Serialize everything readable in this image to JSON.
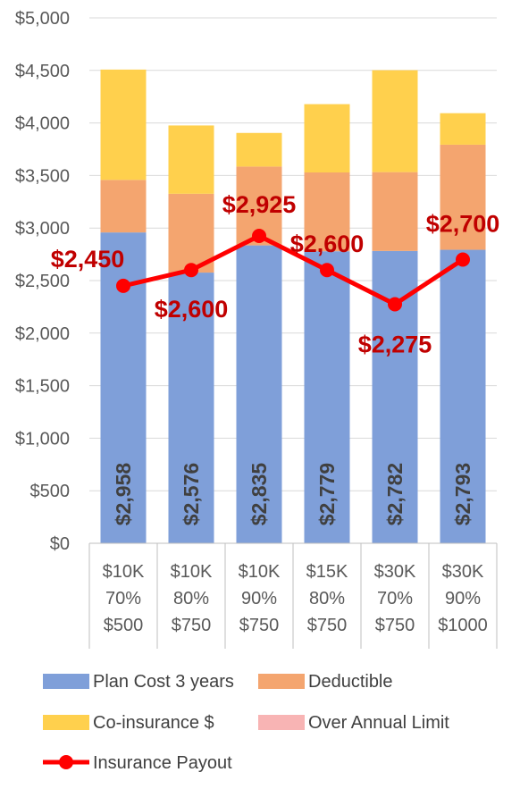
{
  "chart_data": {
    "type": "bar",
    "stacked": true,
    "categories": [
      [
        "$10K",
        "70%",
        "$500"
      ],
      [
        "$10K",
        "80%",
        "$750"
      ],
      [
        "$10K",
        "90%",
        "$750"
      ],
      [
        "$15K",
        "80%",
        "$750"
      ],
      [
        "$30K",
        "70%",
        "$750"
      ],
      [
        "$30K",
        "90%",
        "$1000"
      ]
    ],
    "series": [
      {
        "name": "Plan Cost 3 years",
        "type": "bar",
        "color": "#7f9fd9",
        "values": [
          2958,
          2576,
          2835,
          2779,
          2782,
          2793
        ],
        "labels": [
          "$2,958",
          "$2,576",
          "$2,835",
          "$2,779",
          "$2,782",
          "$2,793"
        ]
      },
      {
        "name": "Deductible",
        "type": "bar",
        "color": "#f4a56f",
        "values": [
          500,
          750,
          750,
          750,
          750,
          1000
        ]
      },
      {
        "name": "Co-insurance $",
        "type": "bar",
        "color": "#ffd04d",
        "values": [
          1050,
          650,
          320,
          650,
          970,
          300
        ]
      },
      {
        "name": "Over Annual Limit",
        "type": "bar",
        "color": "#f8b4b4",
        "values": [
          0,
          0,
          0,
          0,
          0,
          0
        ]
      },
      {
        "name": "Insurance Payout",
        "type": "line",
        "color": "#ff0000",
        "values": [
          2450,
          2600,
          2925,
          2600,
          2275,
          2700
        ],
        "labels": [
          "$2,450",
          "$2,600",
          "$2,925",
          "$2,600",
          "$2,275",
          "$2,700"
        ]
      }
    ],
    "yticks": [
      "$0",
      "$500",
      "$1,000",
      "$1,500",
      "$2,000",
      "$2,500",
      "$3,000",
      "$3,500",
      "$4,000",
      "$4,500",
      "$5,000"
    ],
    "ylim": [
      0,
      5000
    ],
    "grid": true,
    "legend": "bottom",
    "label_color": "#c00000",
    "bar_label_color": "#404040"
  }
}
